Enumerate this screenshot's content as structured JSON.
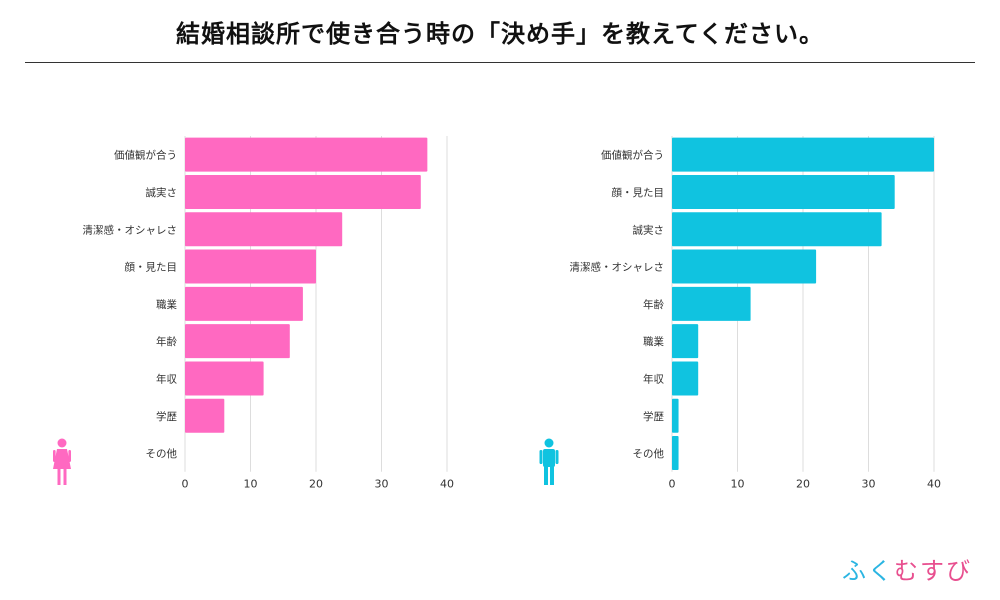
{
  "title": "結婚相談所で使き合う時の「決め手」を教えてください。",
  "logo": {
    "chars": [
      "ふ",
      "く",
      "む",
      "す",
      "び"
    ],
    "colors": [
      "#2bb5e2",
      "#2bb5e2",
      "#e84f8f",
      "#e84f8f",
      "#e84f8f"
    ]
  },
  "chart_data": [
    {
      "type": "bar",
      "orientation": "horizontal",
      "name": "female",
      "icon": "female-icon",
      "color": "#ff69c1",
      "categories": [
        "価値観が合う",
        "誠実さ",
        "清潔感・オシャレさ",
        "顔・見た目",
        "職業",
        "年齢",
        "年収",
        "学歴",
        "その他"
      ],
      "values": [
        37,
        36,
        24,
        20,
        18,
        16,
        12,
        6,
        0
      ],
      "xlim": [
        0,
        40
      ],
      "xticks": [
        0,
        10,
        20,
        30,
        40
      ],
      "grid": true
    },
    {
      "type": "bar",
      "orientation": "horizontal",
      "name": "male",
      "icon": "male-icon",
      "color": "#10c3e0",
      "categories": [
        "価値観が合う",
        "顔・見た目",
        "誠実さ",
        "清潔感・オシャレさ",
        "年齢",
        "職業",
        "年収",
        "学歴",
        "その他"
      ],
      "values": [
        40,
        34,
        32,
        22,
        12,
        4,
        4,
        1,
        1
      ],
      "xlim": [
        0,
        40
      ],
      "xticks": [
        0,
        10,
        20,
        30,
        40
      ],
      "grid": true
    }
  ]
}
